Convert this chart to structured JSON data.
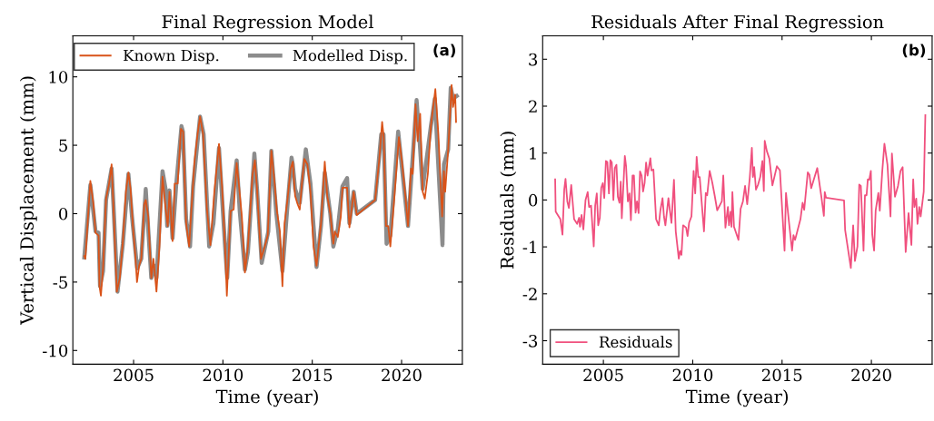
{
  "chart_data": [
    {
      "type": "line",
      "title": "Final Regression Model",
      "xlabel": "Time (year)",
      "ylabel": "Vertical Displacement (mm)",
      "annotations": [
        "(a)"
      ],
      "xlim": [
        2001.6,
        2023.4
      ],
      "ylim": [
        -11,
        13
      ],
      "xticks": [
        2005,
        2010,
        2015,
        2020
      ],
      "yticks": [
        -10,
        -5,
        0,
        5,
        10
      ],
      "grid": false,
      "legend": "top",
      "marker": "none",
      "line_style": "solid",
      "series": [
        {
          "name": "Known Disp.",
          "color": "#d95319",
          "x": [
            2002.24,
            2002.3,
            2002.58,
            2002.75,
            2002.87,
            2003.04,
            2003.09,
            2003.17,
            2003.29,
            2003.46,
            2003.63,
            2003.77,
            2003.89,
            2004.06,
            2004.23,
            2004.4,
            2004.57,
            2004.71,
            2004.83,
            2004.97,
            2005.09,
            2005.19,
            2005.31,
            2005.43,
            2005.6,
            2005.68,
            2005.82,
            2005.99,
            2006.11,
            2006.28,
            2006.45,
            2006.62,
            2006.79,
            2006.91,
            2007.01,
            2007.18,
            2007.3,
            2007.47,
            2007.65,
            2007.77,
            2007.94,
            2008.11,
            2008.21,
            2008.41,
            2008.58,
            2008.72,
            2008.89,
            2009.1,
            2009.3,
            2009.52,
            2009.78,
            2009.95,
            2010.12,
            2010.22,
            2010.43,
            2010.6,
            2010.77,
            2010.89,
            2011.06,
            2011.23,
            2011.4,
            2011.66,
            2011.79,
            2011.91,
            2012.13,
            2012.34,
            2012.51,
            2012.71,
            2012.88,
            2013.02,
            2013.19,
            2013.33,
            2013.45,
            2013.62,
            2013.79,
            2013.91,
            2014.04,
            2014.18,
            2014.3,
            2014.42,
            2014.56,
            2014.73,
            2014.9,
            2015.07,
            2015.24,
            2015.49,
            2015.7,
            2015.84,
            2016.01,
            2016.18,
            2016.26,
            2016.43,
            2016.6,
            2016.69,
            2016.95,
            2017.08,
            2017.32,
            2017.49,
            2018.52,
            2018.74,
            2018.91,
            2019.0,
            2019.13,
            2019.25,
            2019.37,
            2019.59,
            2019.85,
            2020.02,
            2020.19,
            2020.36,
            2020.53,
            2020.62,
            2020.78,
            2020.9,
            2021.04,
            2021.18,
            2021.3,
            2021.47,
            2021.64,
            2021.89,
            2022.06,
            2022.27,
            2022.37,
            2022.44,
            2022.61,
            2022.8,
            2022.88,
            2023.0,
            2023.05
          ],
          "values": [
            -3.1,
            -3.3,
            2.4,
            0.7,
            -1.4,
            -1.6,
            -5.3,
            -6.0,
            -4.0,
            1.1,
            2.2,
            3.6,
            0.0,
            -5.7,
            -4.7,
            -2.0,
            1.6,
            3.0,
            1.8,
            -1.1,
            -2.9,
            -5.0,
            -3.8,
            -3.3,
            0.7,
            1.0,
            -0.2,
            -4.7,
            -3.3,
            -5.7,
            -2.4,
            2.7,
            0.4,
            -0.9,
            1.6,
            -2.0,
            2.2,
            2.2,
            6.2,
            6.0,
            -0.7,
            -2.4,
            -0.2,
            3.8,
            5.8,
            7.1,
            5.8,
            0.4,
            -2.3,
            1.6,
            5.1,
            2.0,
            -2.4,
            -6.0,
            0.2,
            0.3,
            3.7,
            2.2,
            -0.2,
            -4.3,
            -2.4,
            2.9,
            3.9,
            1.8,
            -3.3,
            -2.4,
            -1.6,
            4.6,
            2.4,
            0.2,
            -1.3,
            -5.3,
            -0.7,
            1.1,
            3.3,
            3.8,
            1.3,
            0.7,
            0.3,
            2.2,
            4.0,
            3.6,
            1.6,
            -2.4,
            -3.8,
            -0.7,
            3.8,
            1.3,
            0.0,
            -2.2,
            -1.3,
            -1.7,
            -0.2,
            1.9,
            1.9,
            -1.0,
            1.6,
            -0.1,
            1.0,
            3.8,
            6.7,
            5.6,
            -0.9,
            -0.9,
            -2.4,
            1.1,
            5.6,
            3.8,
            1.6,
            -0.9,
            3.3,
            2.9,
            8.0,
            5.3,
            7.3,
            1.6,
            1.1,
            2.9,
            6.4,
            9.1,
            5.8,
            -0.2,
            3.1,
            1.6,
            4.7,
            9.4,
            7.8,
            8.7,
            6.7
          ]
        },
        {
          "name": "Modelled Disp.",
          "color": "#8c8c8c",
          "x": [
            2002.24,
            2002.58,
            2002.87,
            2003.04,
            2003.12,
            2003.29,
            2003.46,
            2003.77,
            2003.89,
            2004.1,
            2004.4,
            2004.71,
            2004.91,
            2005.2,
            2005.43,
            2005.68,
            2005.99,
            2006.16,
            2006.28,
            2006.62,
            2006.79,
            2006.88,
            2007.01,
            2007.18,
            2007.39,
            2007.68,
            2007.76,
            2007.94,
            2008.16,
            2008.33,
            2008.72,
            2008.92,
            2009.23,
            2009.47,
            2009.78,
            2010.12,
            2010.24,
            2010.43,
            2010.77,
            2010.94,
            2011.23,
            2011.4,
            2011.76,
            2011.91,
            2012.17,
            2012.54,
            2012.71,
            2012.99,
            2013.33,
            2013.62,
            2013.84,
            2013.91,
            2014.04,
            2014.3,
            2014.64,
            2014.9,
            2015.24,
            2015.49,
            2015.7,
            2016.01,
            2016.18,
            2016.43,
            2016.69,
            2016.95,
            2017.08,
            2017.32,
            2017.49,
            2018.52,
            2018.86,
            2018.99,
            2019.16,
            2019.37,
            2019.81,
            2020.36,
            2020.84,
            2021.01,
            2021.18,
            2021.64,
            2021.86,
            2022.29,
            2022.37,
            2022.61,
            2022.75,
            2022.88,
            2023.09
          ],
          "values": [
            -3.2,
            2.1,
            -1.3,
            -1.4,
            -5.3,
            -4.2,
            1.0,
            3.3,
            0.2,
            -5.7,
            -2.2,
            2.9,
            -0.2,
            -4.0,
            -3.3,
            1.8,
            -4.7,
            -3.8,
            -4.7,
            3.1,
            1.8,
            -0.9,
            1.7,
            -1.8,
            2.2,
            6.4,
            6.0,
            -0.4,
            -2.4,
            2.0,
            7.1,
            5.8,
            -2.4,
            -0.7,
            4.8,
            -2.4,
            -4.7,
            0.2,
            3.9,
            0.2,
            -4.1,
            -2.8,
            4.4,
            1.8,
            -3.6,
            -1.3,
            4.6,
            0.0,
            -4.2,
            0.7,
            4.1,
            3.6,
            1.8,
            0.8,
            4.7,
            2.2,
            -3.9,
            -0.9,
            3.0,
            0.0,
            -2.4,
            -1.1,
            2.0,
            2.6,
            -0.7,
            1.6,
            0.0,
            1.0,
            5.8,
            5.8,
            -2.2,
            -1.6,
            6.0,
            -0.9,
            8.3,
            5.3,
            1.8,
            6.4,
            8.4,
            -2.3,
            3.6,
            4.7,
            9.2,
            8.4,
            8.6
          ]
        }
      ]
    },
    {
      "type": "line",
      "title": "Residuals After Final Regression",
      "xlabel": "Time (year)",
      "ylabel": "Residuals (mm)",
      "annotations": [
        "(b)"
      ],
      "xlim": [
        2001.6,
        2023.4
      ],
      "ylim": [
        -3.5,
        3.5
      ],
      "xticks": [
        2005,
        2010,
        2015,
        2020
      ],
      "yticks": [
        -3,
        -2,
        -1,
        0,
        1,
        2,
        3
      ],
      "grid": false,
      "legend": "bottom left",
      "marker": "none",
      "line_style": "solid",
      "series": [
        {
          "name": "Residuals",
          "color": "#f0507e",
          "x": [
            2002.3,
            2002.33,
            2002.59,
            2002.71,
            2002.81,
            2002.88,
            2002.98,
            2003.07,
            2003.2,
            2003.36,
            2003.53,
            2003.64,
            2003.69,
            2003.78,
            2003.88,
            2004.0,
            2004.12,
            2004.2,
            2004.31,
            2004.46,
            2004.54,
            2004.63,
            2004.71,
            2004.8,
            2004.88,
            2004.97,
            2005.05,
            2005.14,
            2005.22,
            2005.31,
            2005.39,
            2005.47,
            2005.56,
            2005.64,
            2005.73,
            2005.81,
            2005.9,
            2005.97,
            2006.03,
            2006.2,
            2006.27,
            2006.37,
            2006.46,
            2006.54,
            2006.63,
            2006.71,
            2006.8,
            2006.88,
            2006.97,
            2007.05,
            2007.14,
            2007.22,
            2007.31,
            2007.39,
            2007.47,
            2007.63,
            2007.69,
            2007.8,
            2007.95,
            2008.1,
            2008.19,
            2008.31,
            2008.39,
            2008.47,
            2008.64,
            2008.73,
            2008.81,
            2008.95,
            2009.05,
            2009.22,
            2009.29,
            2009.37,
            2009.46,
            2009.63,
            2009.71,
            2009.8,
            2009.93,
            2010.05,
            2010.14,
            2010.22,
            2010.31,
            2010.39,
            2010.63,
            2010.73,
            2010.81,
            2010.95,
            2011.1,
            2011.24,
            2011.37,
            2011.63,
            2011.71,
            2011.83,
            2011.97,
            2012.03,
            2012.12,
            2012.17,
            2012.22,
            2012.31,
            2012.56,
            2012.68,
            2012.81,
            2012.93,
            2013.05,
            2013.19,
            2013.31,
            2013.37,
            2013.44,
            2013.54,
            2013.66,
            2013.78,
            2013.9,
            2013.98,
            2014.03,
            2014.15,
            2014.29,
            2014.46,
            2014.71,
            2014.88,
            2015.14,
            2015.22,
            2015.39,
            2015.56,
            2015.64,
            2015.73,
            2016.03,
            2016.15,
            2016.24,
            2016.44,
            2016.53,
            2016.63,
            2016.97,
            2017.2,
            2017.34,
            2017.39,
            2017.46,
            2018.47,
            2018.53,
            2018.85,
            2018.98,
            2019.08,
            2019.22,
            2019.32,
            2019.41,
            2019.56,
            2019.64,
            2019.73,
            2019.8,
            2019.88,
            2019.97,
            2020.05,
            2020.15,
            2020.24,
            2020.39,
            2020.47,
            2020.61,
            2020.73,
            2020.9,
            2021.07,
            2021.15,
            2021.32,
            2021.49,
            2021.63,
            2021.75,
            2021.92,
            2022.08,
            2022.24,
            2022.34,
            2022.41,
            2022.51,
            2022.58,
            2022.68,
            2022.76,
            2022.93,
            2023.02
          ],
          "values": [
            0.44,
            -0.25,
            -0.41,
            -0.74,
            0.23,
            0.45,
            -0.03,
            -0.17,
            0.32,
            -0.41,
            -0.51,
            -0.38,
            -0.57,
            -0.32,
            -0.63,
            0.0,
            0.17,
            -0.15,
            -0.12,
            -0.99,
            -0.12,
            0.14,
            -0.54,
            -0.38,
            0.26,
            0.36,
            0.04,
            0.83,
            0.81,
            0.14,
            0.85,
            0.8,
            0.0,
            0.68,
            0.75,
            0.07,
            -0.06,
            0.39,
            -0.39,
            0.94,
            0.72,
            -0.03,
            0.14,
            -0.43,
            0.52,
            0.52,
            -0.27,
            -0.03,
            -0.28,
            0.61,
            0.52,
            0.18,
            0.37,
            0.8,
            0.52,
            0.89,
            0.63,
            0.65,
            -0.41,
            -0.54,
            -0.22,
            0.04,
            -0.35,
            -0.54,
            0.04,
            -0.25,
            -0.49,
            0.43,
            -0.67,
            -1.25,
            -1.09,
            -1.17,
            -0.54,
            -0.59,
            -0.77,
            -0.48,
            -0.35,
            0.62,
            0.14,
            0.92,
            0.49,
            0.49,
            -0.67,
            0.15,
            0.1,
            0.62,
            0.36,
            0.07,
            -0.22,
            -0.03,
            0.52,
            -0.59,
            -0.15,
            -0.54,
            -0.25,
            -0.57,
            0.17,
            -0.57,
            -0.85,
            -0.19,
            -0.03,
            0.3,
            -0.09,
            0.46,
            1.11,
            0.49,
            0.7,
            0.22,
            0.33,
            0.49,
            0.83,
            0.19,
            1.26,
            1.04,
            0.88,
            0.31,
            0.72,
            0.63,
            -1.08,
            0.15,
            -0.48,
            -1.08,
            -0.75,
            -0.85,
            -0.41,
            -0.06,
            -0.21,
            0.59,
            0.54,
            0.25,
            0.68,
            0.07,
            -0.34,
            0.17,
            0.05,
            -0.01,
            -0.64,
            -1.45,
            -0.54,
            -1.3,
            -0.99,
            0.33,
            0.3,
            -1.08,
            0.1,
            0.1,
            0.44,
            0.43,
            0.62,
            -0.74,
            -1.08,
            -0.22,
            0.15,
            -0.23,
            0.62,
            1.2,
            0.75,
            -0.35,
            0.99,
            0.07,
            0.3,
            0.62,
            0.7,
            -1.11,
            -0.28,
            -0.96,
            0.44,
            -0.15,
            0.03,
            -0.51,
            -0.15,
            -0.35,
            0.18,
            1.81
          ]
        }
      ]
    }
  ]
}
